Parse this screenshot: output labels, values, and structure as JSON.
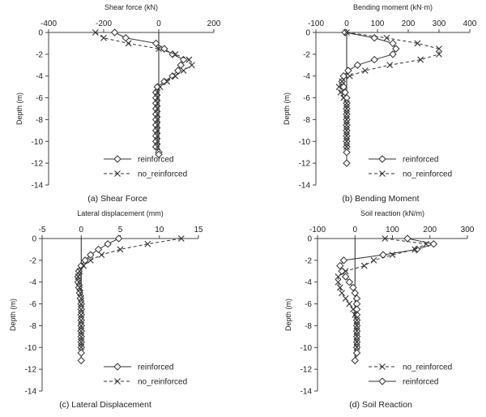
{
  "chart_data": [
    {
      "type": "line",
      "title": "",
      "caption": "(a) Shear Force",
      "xlabel": "Shear force (kN)",
      "ylabel": "Depth (m)",
      "xlim": [
        -400,
        200
      ],
      "ylim": [
        -14,
        0
      ],
      "xticks": [
        -400,
        -200,
        0,
        200
      ],
      "yticks": [
        0,
        -2,
        -4,
        -6,
        -8,
        -10,
        -12,
        -14
      ],
      "grid": false,
      "legend_position": "bottom-right",
      "legend_order": [
        "reinforced",
        "no_reinforced"
      ],
      "series": [
        {
          "name": "reinforced",
          "marker": "diamond",
          "dash": "solid",
          "x": [
            -160,
            -120,
            -10,
            20,
            50,
            90,
            80,
            70,
            50,
            20,
            -5,
            -10,
            -10,
            -10,
            -10,
            -10,
            -10,
            -10,
            -10,
            -10,
            -10,
            -10,
            0,
            0
          ],
          "y": [
            0,
            -0.5,
            -1.0,
            -1.5,
            -2.0,
            -2.5,
            -3.0,
            -3.5,
            -4.0,
            -4.5,
            -5.0,
            -5.5,
            -6.0,
            -6.5,
            -7.0,
            -7.5,
            -8.0,
            -8.5,
            -9.0,
            -9.5,
            -10.0,
            -10.5,
            -11.0,
            -11.2
          ]
        },
        {
          "name": "no_reinforced",
          "marker": "x",
          "dash": "dashed",
          "x": [
            -230,
            -200,
            -110,
            0,
            60,
            110,
            120,
            90,
            60,
            30,
            5,
            -5,
            -5,
            -5,
            -5,
            -5,
            -5,
            -5,
            -5,
            -5,
            -5,
            -5
          ],
          "y": [
            0,
            -0.5,
            -1.0,
            -1.5,
            -2.0,
            -2.5,
            -3.0,
            -3.5,
            -4.0,
            -4.5,
            -5.0,
            -5.5,
            -6.0,
            -6.5,
            -7.0,
            -7.5,
            -8.0,
            -8.5,
            -9.0,
            -9.5,
            -10.0,
            -10.5
          ]
        }
      ]
    },
    {
      "type": "line",
      "title": "",
      "caption": "(b) Bending Moment",
      "xlabel": "Bending moment (kN·m)",
      "ylabel": "Depth (m)",
      "xlim": [
        -100,
        400
      ],
      "ylim": [
        -14,
        0
      ],
      "xticks": [
        -100,
        0,
        100,
        200,
        300,
        400
      ],
      "yticks": [
        0,
        -2,
        -4,
        -6,
        -8,
        -10,
        -12,
        -14
      ],
      "grid": false,
      "legend_position": "bottom-right",
      "legend_order": [
        "reinforced",
        "no_reinforced"
      ],
      "series": [
        {
          "name": "reinforced",
          "marker": "diamond",
          "dash": "solid",
          "x": [
            -5,
            90,
            150,
            160,
            150,
            90,
            35,
            5,
            -10,
            -15,
            -10,
            -5,
            0,
            0,
            0,
            0,
            0,
            0,
            0,
            0,
            0,
            0,
            0,
            0
          ],
          "y": [
            0,
            -0.5,
            -1.0,
            -1.5,
            -2.0,
            -2.5,
            -3.0,
            -3.5,
            -4.0,
            -4.5,
            -5.0,
            -5.5,
            -6.0,
            -6.5,
            -7.0,
            -7.5,
            -8.0,
            -8.5,
            -9.0,
            -9.5,
            -10.0,
            -10.5,
            -11.0,
            -12.0
          ]
        },
        {
          "name": "no_reinforced",
          "marker": "x",
          "dash": "dashed",
          "x": [
            0,
            130,
            230,
            300,
            300,
            240,
            140,
            60,
            10,
            -15,
            -25,
            -20,
            -10,
            0,
            0,
            0,
            0,
            0,
            0,
            0,
            0,
            0
          ],
          "y": [
            0,
            -0.5,
            -1.0,
            -1.5,
            -2.0,
            -2.5,
            -3.0,
            -3.5,
            -4.0,
            -4.5,
            -5.0,
            -5.5,
            -6.0,
            -6.5,
            -7.0,
            -7.5,
            -8.0,
            -8.5,
            -9.0,
            -9.5,
            -10.0,
            -10.5
          ]
        }
      ]
    },
    {
      "type": "line",
      "title": "",
      "caption": "(c) Lateral Displacement",
      "xlabel": "Lateral displacement (mm)",
      "ylabel": "Depth (m)",
      "xlim": [
        -5,
        15
      ],
      "ylim": [
        -14,
        0
      ],
      "xticks": [
        -5,
        0,
        5,
        10,
        15
      ],
      "yticks": [
        0,
        -2,
        -4,
        -6,
        -8,
        -10,
        -12,
        -14
      ],
      "grid": false,
      "legend_position": "bottom-right",
      "legend_order": [
        "reinforced",
        "no_reinforced"
      ],
      "series": [
        {
          "name": "reinforced",
          "marker": "diamond",
          "dash": "solid",
          "x": [
            4.8,
            3.4,
            2.2,
            1.2,
            0.5,
            0.0,
            -0.3,
            -0.4,
            -0.4,
            -0.3,
            -0.2,
            -0.1,
            0,
            0,
            0,
            0,
            0,
            0,
            0,
            0,
            0,
            0,
            0
          ],
          "y": [
            0,
            -0.5,
            -1.0,
            -1.5,
            -2.0,
            -2.5,
            -3.0,
            -3.5,
            -4.0,
            -4.5,
            -5.0,
            -5.5,
            -6.0,
            -6.5,
            -7.0,
            -7.5,
            -8.0,
            -8.5,
            -9.0,
            -9.5,
            -10.0,
            -10.5,
            -11.2
          ]
        },
        {
          "name": "no_reinforced",
          "marker": "x",
          "dash": "dashed",
          "x": [
            12.8,
            8.5,
            5.0,
            2.6,
            1.2,
            0.3,
            -0.2,
            -0.4,
            -0.3,
            -0.2,
            -0.1,
            0,
            0,
            0,
            0,
            0,
            0,
            0,
            0,
            0,
            0
          ],
          "y": [
            0,
            -0.5,
            -1.0,
            -1.5,
            -2.0,
            -2.5,
            -3.0,
            -3.5,
            -4.0,
            -4.5,
            -5.0,
            -5.5,
            -6.0,
            -6.5,
            -7.0,
            -7.5,
            -8.0,
            -8.5,
            -9.0,
            -9.5,
            -10.0
          ]
        }
      ]
    },
    {
      "type": "line",
      "title": "",
      "caption": "(d) Soil Reaction",
      "xlabel": "Soil reaction (kN/m)",
      "ylabel": "Depth (m)",
      "xlim": [
        -100,
        300
      ],
      "ylim": [
        -14,
        0
      ],
      "xticks": [
        -100,
        0,
        100,
        200,
        300
      ],
      "yticks": [
        0,
        -2,
        -4,
        -6,
        -8,
        -10,
        -12,
        -14
      ],
      "grid": false,
      "legend_position": "bottom-right",
      "legend_order": [
        "no_reinforced",
        "reinforced"
      ],
      "series": [
        {
          "name": "reinforced",
          "marker": "diamond",
          "dash": "solid",
          "x": [
            140,
            210,
            165,
            75,
            -30,
            -40,
            -35,
            -25,
            -15,
            -5,
            0,
            5,
            5,
            5,
            5,
            5,
            5,
            5,
            5,
            5,
            5,
            5,
            0
          ],
          "y": [
            0,
            -0.5,
            -1.0,
            -1.5,
            -2.0,
            -2.5,
            -3.0,
            -3.5,
            -4.0,
            -4.5,
            -5.0,
            -5.5,
            -6.0,
            -6.5,
            -7.0,
            -7.5,
            -8.0,
            -8.5,
            -9.0,
            -9.5,
            -10.0,
            -10.5,
            -11.2
          ]
        },
        {
          "name": "no_reinforced",
          "marker": "x",
          "dash": "dashed",
          "x": [
            80,
            190,
            160,
            100,
            50,
            25,
            -25,
            -45,
            -45,
            -40,
            -35,
            -25,
            -15,
            -5,
            0,
            5,
            5,
            5,
            5,
            5,
            5
          ],
          "y": [
            0,
            -0.5,
            -1.0,
            -1.5,
            -2.0,
            -2.5,
            -3.0,
            -3.5,
            -4.0,
            -4.5,
            -5.0,
            -5.5,
            -6.0,
            -6.5,
            -7.0,
            -7.5,
            -8.0,
            -8.5,
            -9.0,
            -9.5,
            -10.0
          ]
        }
      ]
    }
  ]
}
